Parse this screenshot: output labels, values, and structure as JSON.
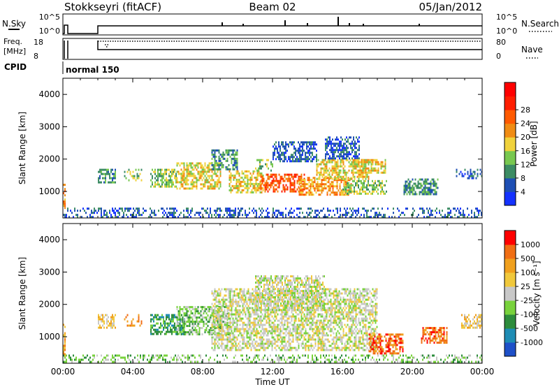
{
  "header": {
    "station": "Stokkseyri (fitACF)",
    "beam": "Beam 02",
    "date": "05/Jan/2012"
  },
  "status_panels": {
    "nsky_label": "N.Sky",
    "nsky_ticks": [
      "10^5",
      "10^0"
    ],
    "nsearch_label": "N.Search",
    "nsearch_ticks": [
      "10^5",
      "10^0"
    ],
    "freq_label_top": "Freq.",
    "freq_label_unit": "[MHz]",
    "freq_ticks": [
      "18",
      "8"
    ],
    "nave_label": "Nave",
    "nave_ticks": [
      "80",
      "0"
    ],
    "cpid_label": "CPID",
    "cpid_value": "normal 150"
  },
  "chart_data": [
    {
      "type": "heatmap",
      "name": "power",
      "ylabel": "Slant Range [km]",
      "xlabel": "",
      "ylim": [
        180,
        4500
      ],
      "xlim_hours": [
        0,
        24
      ],
      "y_ticks": [
        "1000",
        "2000",
        "3000",
        "4000"
      ],
      "colorbar": {
        "title": "Power [dB]",
        "ticks": [
          "4",
          "8",
          "12",
          "16",
          "20",
          "24",
          "28"
        ],
        "colors": [
          "#1432ff",
          "#1e4fb4",
          "#3c8c64",
          "#78c850",
          "#f0d23c",
          "#f08c14",
          "#ff5a00",
          "#ff1e00",
          "#ff0000"
        ]
      },
      "regions": [
        {
          "t": [
            0.0,
            0.15
          ],
          "r": [
            400,
            1300
          ],
          "level": 5
        },
        {
          "t": [
            2.0,
            3.0
          ],
          "r": [
            1300,
            1700
          ],
          "level": 2
        },
        {
          "t": [
            3.5,
            4.5
          ],
          "r": [
            1350,
            1700
          ],
          "level": 3
        },
        {
          "t": [
            5.0,
            6.5
          ],
          "r": [
            1150,
            1700
          ],
          "level": 3
        },
        {
          "t": [
            6.5,
            9.0
          ],
          "r": [
            1100,
            1900
          ],
          "level": 4
        },
        {
          "t": [
            8.5,
            10.0
          ],
          "r": [
            1700,
            2300
          ],
          "level": 2
        },
        {
          "t": [
            9.5,
            11.5
          ],
          "r": [
            950,
            1650
          ],
          "level": 4
        },
        {
          "t": [
            11.0,
            12.0
          ],
          "r": [
            1650,
            2000
          ],
          "level": 3
        },
        {
          "t": [
            11.3,
            13.8
          ],
          "r": [
            1000,
            1550
          ],
          "level": 6
        },
        {
          "t": [
            12.0,
            14.5
          ],
          "r": [
            1950,
            2550
          ],
          "level": 1
        },
        {
          "t": [
            13.5,
            16.5
          ],
          "r": [
            900,
            1450
          ],
          "level": 5
        },
        {
          "t": [
            14.5,
            17.5
          ],
          "r": [
            1400,
            2000
          ],
          "level": 4
        },
        {
          "t": [
            15.0,
            17.0
          ],
          "r": [
            2000,
            2700
          ],
          "level": 1
        },
        {
          "t": [
            16.5,
            18.5
          ],
          "r": [
            1600,
            2000
          ],
          "level": 4
        },
        {
          "t": [
            16.0,
            18.5
          ],
          "r": [
            900,
            1350
          ],
          "level": 3
        },
        {
          "t": [
            19.5,
            21.5
          ],
          "r": [
            900,
            1400
          ],
          "level": 2
        },
        {
          "t": [
            22.5,
            24.0
          ],
          "r": [
            1400,
            1700
          ],
          "level": 1
        },
        {
          "t": [
            0.0,
            24.0
          ],
          "r": [
            200,
            500
          ],
          "level": 1
        }
      ]
    },
    {
      "type": "heatmap",
      "name": "velocity",
      "ylabel": "Slant Range [km]",
      "xlabel": "Time UT",
      "ylim": [
        180,
        4500
      ],
      "xlim_hours": [
        0,
        24
      ],
      "y_ticks": [
        "1000",
        "2000",
        "3000",
        "4000"
      ],
      "x_ticks": [
        "00:00",
        "04:00",
        "08:00",
        "12:00",
        "16:00",
        "20:00",
        "00:00"
      ],
      "colorbar": {
        "title": "Velocity [m s⁻¹]",
        "ticks": [
          "1000",
          "500",
          "100",
          "25",
          "-25",
          "-100",
          "-500",
          "-1000"
        ],
        "colors": [
          "#1e50c8",
          "#1e8cb4",
          "#2d8c3c",
          "#78d23c",
          "#c8c8c8",
          "#f0c83c",
          "#f0a01e",
          "#f06e14",
          "#ff0000"
        ]
      },
      "regions": [
        {
          "t": [
            0.0,
            0.15
          ],
          "r": [
            400,
            1400
          ],
          "level": 6
        },
        {
          "t": [
            2.0,
            3.0
          ],
          "r": [
            1300,
            1700
          ],
          "level": 5
        },
        {
          "t": [
            3.5,
            4.5
          ],
          "r": [
            1350,
            1700
          ],
          "level": 6
        },
        {
          "t": [
            5.0,
            7.0
          ],
          "r": [
            1100,
            1700
          ],
          "level": 2
        },
        {
          "t": [
            6.5,
            9.5
          ],
          "r": [
            1100,
            1950
          ],
          "level": 3
        },
        {
          "t": [
            8.5,
            18.0
          ],
          "r": [
            600,
            2500
          ],
          "level": 4
        },
        {
          "t": [
            11.0,
            15.0
          ],
          "r": [
            1800,
            2900
          ],
          "level": 4
        },
        {
          "t": [
            17.5,
            19.5
          ],
          "r": [
            500,
            1100
          ],
          "level": 7
        },
        {
          "t": [
            20.5,
            22.0
          ],
          "r": [
            800,
            1300
          ],
          "level": 7
        },
        {
          "t": [
            22.8,
            24.0
          ],
          "r": [
            1300,
            1700
          ],
          "level": 5
        },
        {
          "t": [
            0.0,
            24.0
          ],
          "r": [
            200,
            450
          ],
          "level": 3
        }
      ]
    }
  ]
}
